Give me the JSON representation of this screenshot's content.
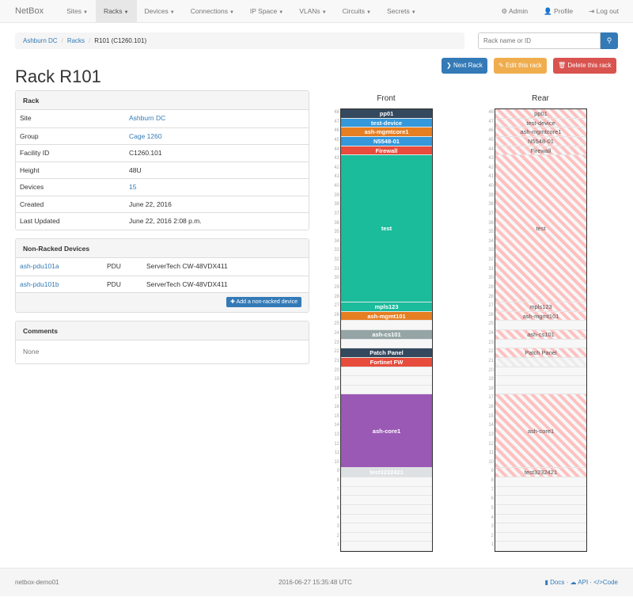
{
  "nav": {
    "brand": "NetBox",
    "items": [
      "Sites",
      "Racks",
      "Devices",
      "Connections",
      "IP Space",
      "VLANs",
      "Circuits",
      "Secrets"
    ],
    "active": "Racks",
    "right": [
      {
        "icon": "gear-icon",
        "label": "Admin"
      },
      {
        "icon": "user-icon",
        "label": "Profile"
      },
      {
        "icon": "logout-icon",
        "label": "Log out"
      }
    ]
  },
  "breadcrumb": [
    "Ashburn DC",
    "Racks",
    "R101 (C1260.101)"
  ],
  "search": {
    "placeholder": "Rack name or ID"
  },
  "buttons": {
    "next": "Next Rack",
    "edit": "Edit this rack",
    "delete": "Delete this rack"
  },
  "title": "Rack R101",
  "rack_panel": {
    "title": "Rack",
    "rows": [
      {
        "k": "Site",
        "v": "Ashburn DC",
        "link": true
      },
      {
        "k": "Group",
        "v": "Cage 1260",
        "link": true
      },
      {
        "k": "Facility ID",
        "v": "C1260.101"
      },
      {
        "k": "Height",
        "v": "48U"
      },
      {
        "k": "Devices",
        "v": "15",
        "link": true
      },
      {
        "k": "Created",
        "v": "June 22, 2016"
      },
      {
        "k": "Last Updated",
        "v": "June 22, 2016 2:08 p.m."
      }
    ]
  },
  "nonracked": {
    "title": "Non-Racked Devices",
    "rows": [
      [
        "ash-pdu101a",
        "PDU",
        "ServerTech CW-48VDX411"
      ],
      [
        "ash-pdu101b",
        "PDU",
        "ServerTech CW-48VDX411"
      ]
    ],
    "add": "Add a non-racked device"
  },
  "comments": {
    "title": "Comments",
    "body": "None"
  },
  "elevation": {
    "front_title": "Front",
    "rear_title": "Rear",
    "height": 48,
    "devices": [
      {
        "name": "pp01",
        "top": 48,
        "u": 1,
        "color": "#34495e"
      },
      {
        "name": "test-device",
        "top": 47,
        "u": 1,
        "color": "#3498db"
      },
      {
        "name": "ash-mgmtcore1",
        "top": 46,
        "u": 1,
        "color": "#e67e22"
      },
      {
        "name": "N5548-01",
        "top": 45,
        "u": 1,
        "color": "#3498db"
      },
      {
        "name": "Firewall",
        "top": 44,
        "u": 1,
        "color": "#e74c3c"
      },
      {
        "name": "test",
        "top": 43,
        "u": 16,
        "color": "#1abc9c"
      },
      {
        "name": "mpls123",
        "top": 27,
        "u": 1,
        "color": "#1abc9c"
      },
      {
        "name": "ash-mgmt101",
        "top": 26,
        "u": 1,
        "color": "#e67e22"
      },
      {
        "name": "ash-cs101",
        "top": 24,
        "u": 1,
        "color": "#95a5a6"
      },
      {
        "name": "Patch Panel",
        "top": 22,
        "u": 1,
        "color": "#34495e"
      },
      {
        "name": "Fortinet FW",
        "top": 21,
        "u": 1,
        "color": "#e74c3c",
        "half_depth": true
      },
      {
        "name": "ash-core1",
        "top": 17,
        "u": 8,
        "color": "#9b59b6"
      },
      {
        "name": "test3232421",
        "top": 9,
        "u": 1,
        "color": "#dde1e3"
      }
    ]
  },
  "footer": {
    "host": "netbox-demo01",
    "time": "2016-06-27 15:35:48 UTC",
    "links": [
      "Docs",
      "API",
      "Code"
    ]
  }
}
